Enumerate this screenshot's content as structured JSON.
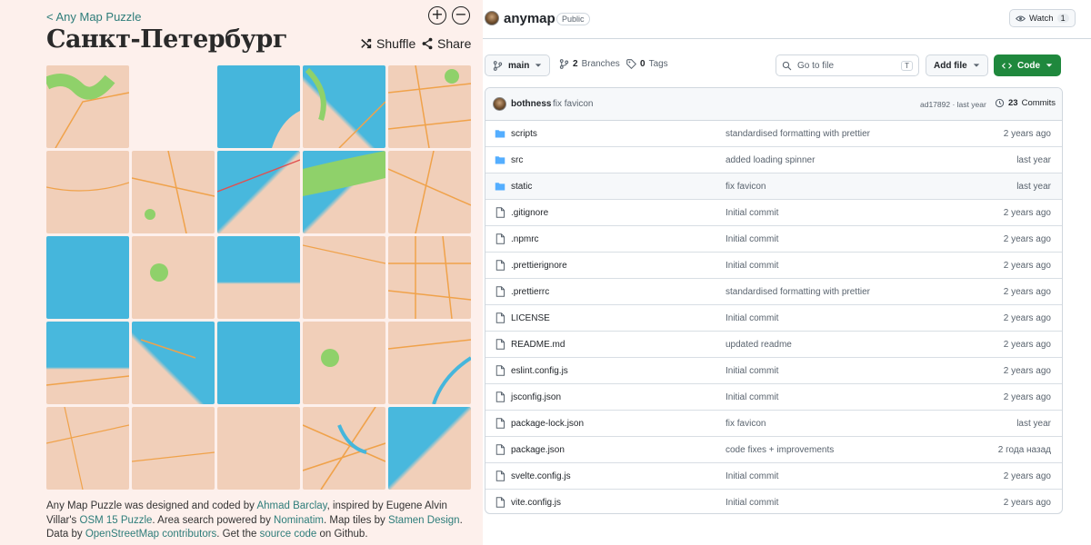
{
  "left": {
    "back_link": "< Any Map Puzzle",
    "title": "Санкт-Петербург",
    "zoom_in": "+",
    "zoom_out": "−",
    "shuffle_label": "Shuffle",
    "share_label": "Share",
    "credits": {
      "t1": "Any Map Puzzle was designed and coded by ",
      "author": "Ahmad Barclay",
      "t2": ", inspired by Eugene Alvin Villar's ",
      "inspiration": "OSM 15 Puzzle",
      "t3": ". Area search powered by ",
      "search": "Nominatim",
      "t4": ". Map tiles by ",
      "tiles": "Stamen Design",
      "t5": ". Data by ",
      "data": "OpenStreetMap contributors",
      "t6": ". Get the ",
      "source": "source code",
      "t7": " on Github."
    }
  },
  "repo": {
    "name": "anymap",
    "visibility": "Public",
    "watch_label": "Watch",
    "watch_count": "1",
    "branch": "main",
    "branches_count": "2",
    "branches_label": "Branches",
    "tags_count": "0",
    "tags_label": "Tags",
    "goto_placeholder": "Go to file",
    "goto_kbd": "T",
    "add_file_label": "Add file",
    "code_label": "Code",
    "latest_commit": {
      "author": "bothness",
      "message": "fix favicon",
      "hash_time": "ad17892 · last year",
      "commits_count": "23",
      "commits_label": "Commits"
    },
    "files": [
      {
        "name": "scripts",
        "type": "folder",
        "commit": "standardised formatting with prettier",
        "time": "2 years ago"
      },
      {
        "name": "src",
        "type": "folder",
        "commit": "added loading spinner",
        "time": "last year"
      },
      {
        "name": "static",
        "type": "folder",
        "commit": "fix favicon",
        "time": "last year"
      },
      {
        "name": ".gitignore",
        "type": "file",
        "commit": "Initial commit",
        "time": "2 years ago"
      },
      {
        "name": ".npmrc",
        "type": "file",
        "commit": "Initial commit",
        "time": "2 years ago"
      },
      {
        "name": ".prettierignore",
        "type": "file",
        "commit": "Initial commit",
        "time": "2 years ago"
      },
      {
        "name": ".prettierrc",
        "type": "file",
        "commit": "standardised formatting with prettier",
        "time": "2 years ago"
      },
      {
        "name": "LICENSE",
        "type": "file",
        "commit": "Initial commit",
        "time": "2 years ago"
      },
      {
        "name": "README.md",
        "type": "file",
        "commit": "updated readme",
        "time": "2 years ago"
      },
      {
        "name": "eslint.config.js",
        "type": "file",
        "commit": "Initial commit",
        "time": "2 years ago"
      },
      {
        "name": "jsconfig.json",
        "type": "file",
        "commit": "Initial commit",
        "time": "2 years ago"
      },
      {
        "name": "package-lock.json",
        "type": "file",
        "commit": "fix favicon",
        "time": "last year"
      },
      {
        "name": "package.json",
        "type": "file",
        "commit": "code fixes + improvements",
        "time": "2 года назад"
      },
      {
        "name": "svelte.config.js",
        "type": "file",
        "commit": "Initial commit",
        "time": "2 years ago"
      },
      {
        "name": "vite.config.js",
        "type": "file",
        "commit": "Initial commit",
        "time": "2 years ago"
      }
    ]
  },
  "colors": {
    "accent_link": "#2e7d7a",
    "left_bg": "#fdf0ec",
    "water": "#45b6dc",
    "land": "#f1cfb9",
    "park": "#8fd16a",
    "road": "#f0a24a",
    "folder": "#54aeff",
    "code_green": "#1f883d"
  }
}
